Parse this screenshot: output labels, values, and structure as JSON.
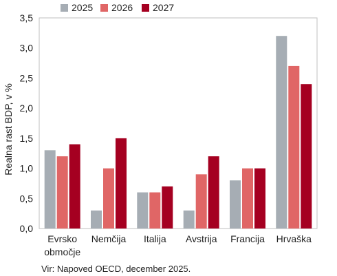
{
  "chart_data": {
    "type": "bar",
    "title": "",
    "xlabel": "",
    "ylabel": "Realna rast BDP, v %",
    "ylim": [
      0,
      3.5
    ],
    "yticks": [
      "0,0",
      "0,5",
      "1,0",
      "1,5",
      "2,0",
      "2,5",
      "3,0",
      "3,5"
    ],
    "ytick_values": [
      0,
      0.5,
      1.0,
      1.5,
      2.0,
      2.5,
      3.0,
      3.5
    ],
    "categories": [
      [
        "Evrsko",
        "območje"
      ],
      [
        "Nemčija"
      ],
      [
        "Italija"
      ],
      [
        "Avstrija"
      ],
      [
        "Francija"
      ],
      [
        "Hrvaška"
      ]
    ],
    "series": [
      {
        "name": "2025",
        "color": "#a6adb4",
        "values": [
          1.3,
          0.3,
          0.6,
          0.3,
          0.8,
          3.2
        ]
      },
      {
        "name": "2026",
        "color": "#e06666",
        "values": [
          1.2,
          1.0,
          0.6,
          0.9,
          1.0,
          2.7
        ]
      },
      {
        "name": "2027",
        "color": "#a50021",
        "values": [
          1.4,
          1.5,
          0.7,
          1.2,
          1.0,
          2.4
        ]
      }
    ],
    "grid": false,
    "legend_position": "top",
    "source": "Vir: Napoved OECD, december 2025."
  }
}
